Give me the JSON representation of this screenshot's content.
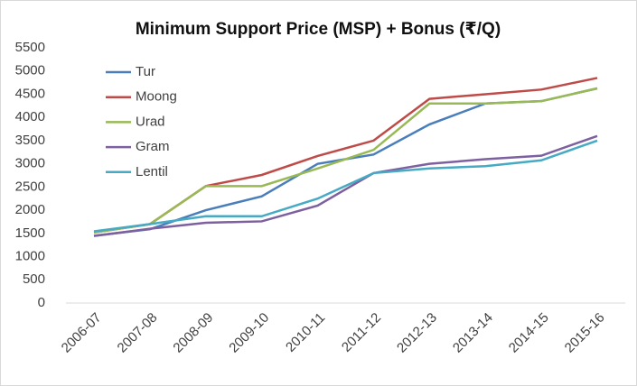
{
  "chart_data": {
    "type": "line",
    "title": "Minimum Support Price (MSP) + Bonus (₹/Q)",
    "categories": [
      "2006-07",
      "2007-08",
      "2008-09",
      "2009-10",
      "2010-11",
      "2011-12",
      "2012-13",
      "2013-14",
      "2014-15",
      "2015-16"
    ],
    "series": [
      {
        "name": "Tur",
        "color": "#4a7ebb",
        "values": [
          1450,
          1590,
          2000,
          2300,
          3000,
          3200,
          3850,
          4300,
          4350,
          4625
        ]
      },
      {
        "name": "Moong",
        "color": "#be4b48",
        "values": [
          1520,
          1700,
          2520,
          2760,
          3170,
          3500,
          4400,
          4500,
          4600,
          4850
        ]
      },
      {
        "name": "Urad",
        "color": "#98b954",
        "values": [
          1520,
          1700,
          2520,
          2520,
          2900,
          3300,
          4300,
          4300,
          4350,
          4625
        ]
      },
      {
        "name": "Gram",
        "color": "#7d60a0",
        "values": [
          1445,
          1600,
          1730,
          1760,
          2100,
          2800,
          3000,
          3100,
          3175,
          3600
        ]
      },
      {
        "name": "Lentil",
        "color": "#46aac5",
        "values": [
          1545,
          1700,
          1870,
          1870,
          2250,
          2800,
          2900,
          2950,
          3075,
          3500
        ]
      }
    ],
    "ylim": [
      0,
      5500
    ],
    "yticks": [
      0,
      500,
      1000,
      1500,
      2000,
      2500,
      3000,
      3500,
      4000,
      4500,
      5000,
      5500
    ],
    "legend": "upper left"
  }
}
